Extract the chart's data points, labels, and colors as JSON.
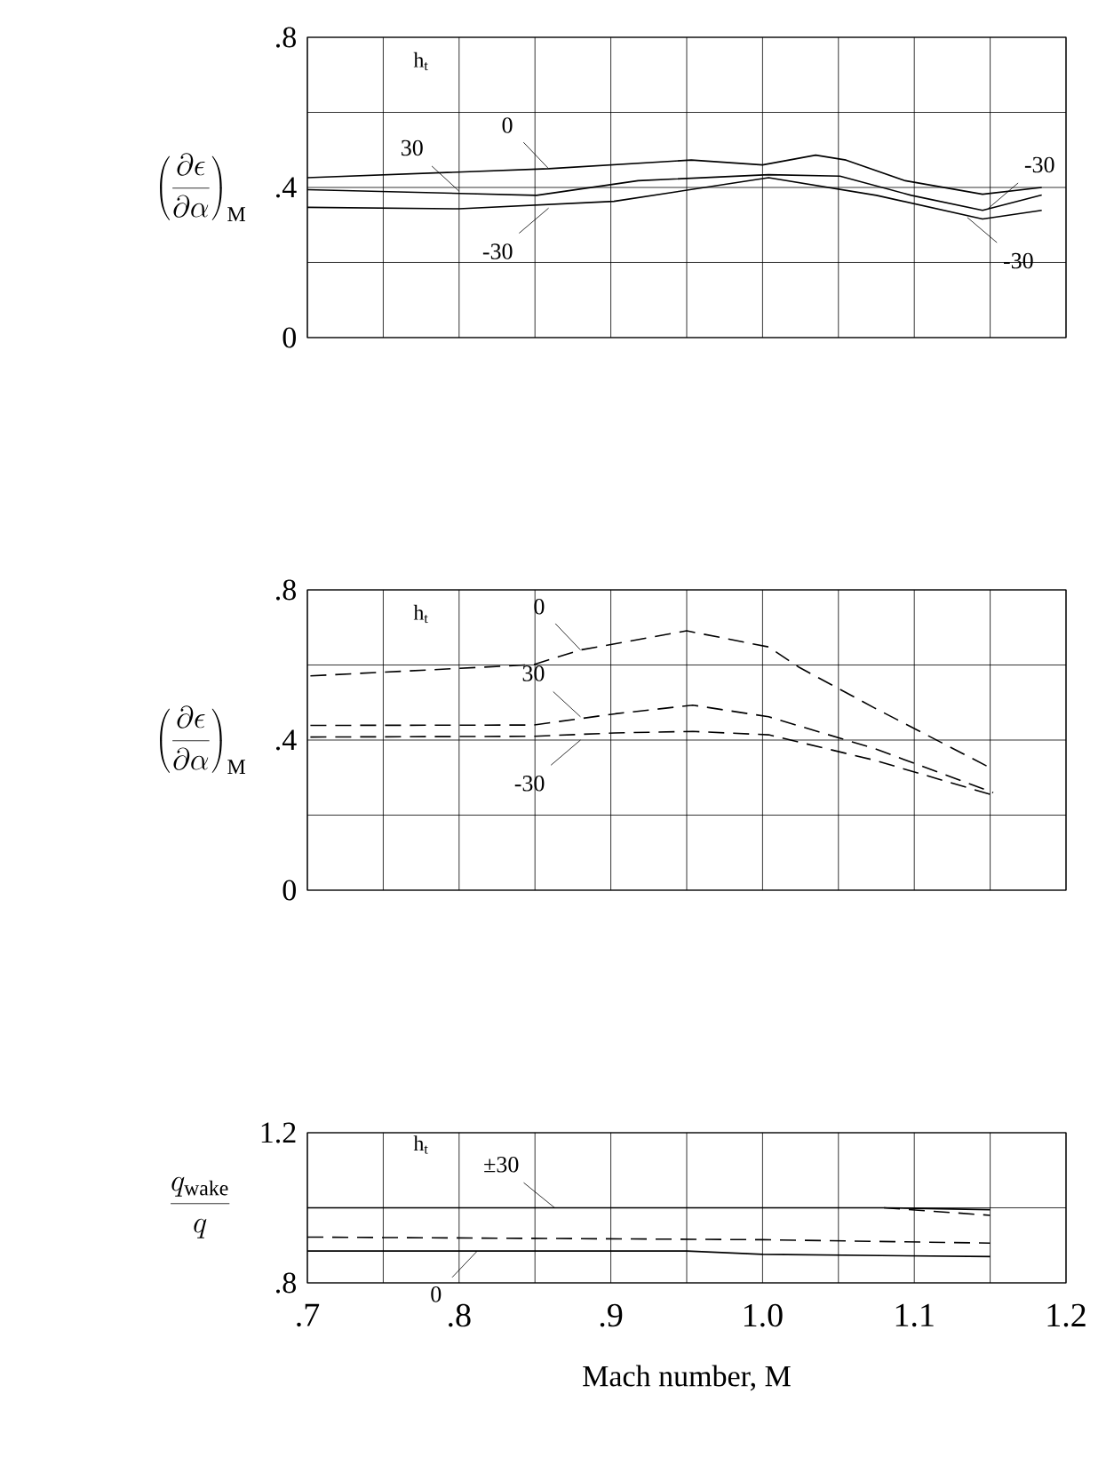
{
  "chart_data": [
    {
      "type": "line",
      "ylabel": "\\left(\\frac{\\partial\\epsilon}{\\partial\\alpha}\\right)_{\\mathrm{M}}",
      "legend_title": "h$_{t}$",
      "xlim": [
        0.7,
        1.2
      ],
      "xticks": [
        0.7,
        0.75,
        0.8,
        0.85,
        0.9,
        0.95,
        1.0,
        1.05,
        1.1,
        1.15,
        1.2
      ],
      "ylim": [
        0,
        0.8
      ],
      "yticks": [
        {
          "value": 0,
          "label": "0"
        },
        {
          "value": 0.2,
          "label": null
        },
        {
          "value": 0.4,
          "label": ".4"
        },
        {
          "value": 0.6,
          "label": null
        },
        {
          "value": 0.8,
          "label": ".8"
        }
      ],
      "tick_labels": "y",
      "grid": true,
      "series": [
        {
          "color": "#000000",
          "line_style": "solid",
          "x": [
            0.7,
            0.859,
            0.953,
            1.0,
            1.035,
            1.055,
            1.094,
            1.145,
            1.184
          ],
          "values": [
            0.426,
            0.45,
            0.473,
            0.46,
            0.486,
            0.473,
            0.418,
            0.382,
            0.4
          ]
        },
        {
          "color": "#000000",
          "line_style": "solid",
          "x": [
            0.7,
            0.851,
            0.918,
            1.004,
            1.051,
            1.098,
            1.145,
            1.184
          ],
          "values": [
            0.394,
            0.379,
            0.418,
            0.434,
            0.43,
            0.379,
            0.339,
            0.38
          ]
        },
        {
          "color": "#000000",
          "line_style": "solid",
          "x": [
            0.7,
            0.8,
            0.902,
            1.004,
            1.075,
            1.145,
            1.184
          ],
          "values": [
            0.347,
            0.343,
            0.363,
            0.426,
            0.379,
            0.316,
            0.339
          ]
        }
      ],
      "annotations": [
        {
          "text": "0",
          "x": 0.859,
          "y": 0.45
        },
        {
          "text": "30",
          "x": 0.8,
          "y": 0.39
        },
        {
          "text": "-30",
          "x": 0.859,
          "y": 0.345
        },
        {
          "text": "-30",
          "x": 1.149,
          "y": 0.345
        },
        {
          "text": "-30",
          "x": 1.135,
          "y": 0.32
        }
      ]
    },
    {
      "type": "line",
      "ylabel": "\\left(\\frac{\\partial\\epsilon}{\\partial\\alpha}\\right)_{\\mathrm{M}}",
      "legend_title": "h$_{t}$",
      "xlim": [
        0.7,
        1.2
      ],
      "xticks": [
        0.7,
        0.75,
        0.8,
        0.85,
        0.9,
        0.95,
        1.0,
        1.05,
        1.1,
        1.15,
        1.2
      ],
      "ylim": [
        0,
        0.8
      ],
      "yticks": [
        {
          "value": 0,
          "label": "0"
        },
        {
          "value": 0.2,
          "label": null
        },
        {
          "value": 0.4,
          "label": ".4"
        },
        {
          "value": 0.6,
          "label": null
        },
        {
          "value": 0.8,
          "label": ".8"
        }
      ],
      "tick_labels": "y",
      "grid": true,
      "series": [
        {
          "color": "#000000",
          "line_style": "dashed",
          "x": [
            0.702,
            0.849,
            0.88,
            0.95,
            1.004,
            1.024,
            1.074,
            1.152
          ],
          "values": [
            0.571,
            0.601,
            0.64,
            0.691,
            0.648,
            0.594,
            0.485,
            0.322
          ]
        },
        {
          "color": "#000000",
          "line_style": "dashed",
          "x": [
            0.702,
            0.849,
            0.903,
            0.954,
            1.004,
            1.074,
            1.152
          ],
          "values": [
            0.439,
            0.44,
            0.47,
            0.493,
            0.462,
            0.377,
            0.26
          ]
        },
        {
          "color": "#000000",
          "line_style": "dashed",
          "x": [
            0.702,
            0.849,
            0.903,
            0.954,
            1.004,
            1.074,
            1.152
          ],
          "values": [
            0.408,
            0.41,
            0.419,
            0.423,
            0.414,
            0.346,
            0.253
          ]
        }
      ],
      "annotations": [
        {
          "text": "0",
          "x": 0.88,
          "y": 0.64
        },
        {
          "text": "30",
          "x": 0.88,
          "y": 0.462
        },
        {
          "text": "-30",
          "x": 0.88,
          "y": 0.4
        }
      ]
    },
    {
      "type": "line",
      "ylabel": "\\frac{q_{\\mathrm{wake}}}{q}",
      "xlabel": "Mach number,  M",
      "legend_title": "h$_{t}$",
      "xlim": [
        0.7,
        1.2
      ],
      "xticks": [
        {
          "value": 0.7,
          "label": ".7"
        },
        {
          "value": 0.75,
          "label": null
        },
        {
          "value": 0.8,
          "label": ".8"
        },
        {
          "value": 0.85,
          "label": null
        },
        {
          "value": 0.9,
          "label": ".9"
        },
        {
          "value": 0.95,
          "label": null
        },
        {
          "value": 1.0,
          "label": "1.0"
        },
        {
          "value": 1.05,
          "label": null
        },
        {
          "value": 1.1,
          "label": "1.1"
        },
        {
          "value": 1.15,
          "label": null
        },
        {
          "value": 1.2,
          "label": "1.2"
        }
      ],
      "ylim": [
        0.8,
        1.2
      ],
      "yticks": [
        {
          "value": 0.8,
          "label": ".8"
        },
        {
          "value": 1.0,
          "label": null
        },
        {
          "value": 1.2,
          "label": "1.2"
        }
      ],
      "grid": true,
      "series": [
        {
          "color": "#000000",
          "line_style": "solid",
          "x": [
            0.7,
            1.0,
            1.08,
            1.15
          ],
          "values": [
            1.0,
            1.0,
            1.0,
            0.995
          ]
        },
        {
          "color": "#000000",
          "line_style": "dashed",
          "x": [
            1.08,
            1.15
          ],
          "values": [
            1.0,
            0.98
          ]
        },
        {
          "color": "#000000",
          "line_style": "solid",
          "x": [
            0.7,
            0.95,
            1.0,
            1.15
          ],
          "values": [
            0.885,
            0.885,
            0.876,
            0.87
          ]
        },
        {
          "color": "#000000",
          "line_style": "dashed",
          "x": [
            0.7,
            1.0,
            1.15
          ],
          "values": [
            0.922,
            0.915,
            0.906
          ]
        }
      ],
      "annotations": [
        {
          "text": "±30",
          "x": 0.863,
          "y": 1.0
        },
        {
          "text": "0",
          "x": 0.812,
          "y": 0.885
        }
      ]
    }
  ]
}
